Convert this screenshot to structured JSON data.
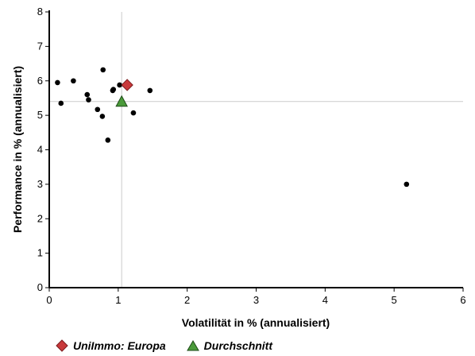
{
  "chart_data": {
    "type": "scatter",
    "title": "",
    "xlabel": "Volatilität in % (annualisiert)",
    "ylabel": "Performance in % (annualisiert)",
    "xlim": [
      0,
      6
    ],
    "ylim": [
      0,
      8
    ],
    "xticks": [
      0,
      1,
      2,
      3,
      4,
      5,
      6
    ],
    "yticks": [
      0,
      1,
      2,
      3,
      4,
      5,
      6,
      7,
      8
    ],
    "xtick_labels": [
      "0",
      "1",
      "2",
      "3",
      "4",
      "5",
      "6"
    ],
    "ytick_labels": [
      "0",
      "1",
      "2",
      "3",
      "4",
      "5",
      "6",
      "7",
      "8"
    ],
    "grid": false,
    "reference_lines": {
      "x": 1.05,
      "y": 5.4
    },
    "legend_position": "bottom-left",
    "series": [
      {
        "name": "",
        "marker": "circle",
        "color": "#000000",
        "points": [
          [
            0.12,
            5.95
          ],
          [
            0.17,
            5.35
          ],
          [
            0.35,
            6.0
          ],
          [
            0.55,
            5.6
          ],
          [
            0.57,
            5.45
          ],
          [
            0.7,
            5.17
          ],
          [
            0.77,
            4.97
          ],
          [
            0.78,
            6.32
          ],
          [
            0.85,
            4.28
          ],
          [
            0.92,
            5.72
          ],
          [
            0.93,
            5.75
          ],
          [
            1.02,
            5.88
          ],
          [
            1.22,
            5.07
          ],
          [
            1.46,
            5.72
          ],
          [
            5.18,
            3.0
          ]
        ]
      },
      {
        "name": "UniImmo: Europa",
        "marker": "diamond",
        "color": "#c8393b",
        "points": [
          [
            1.13,
            5.88
          ]
        ]
      },
      {
        "name": "Durchschnitt",
        "marker": "triangle",
        "color": "#4a9a3a",
        "points": [
          [
            1.05,
            5.4
          ]
        ]
      }
    ]
  }
}
